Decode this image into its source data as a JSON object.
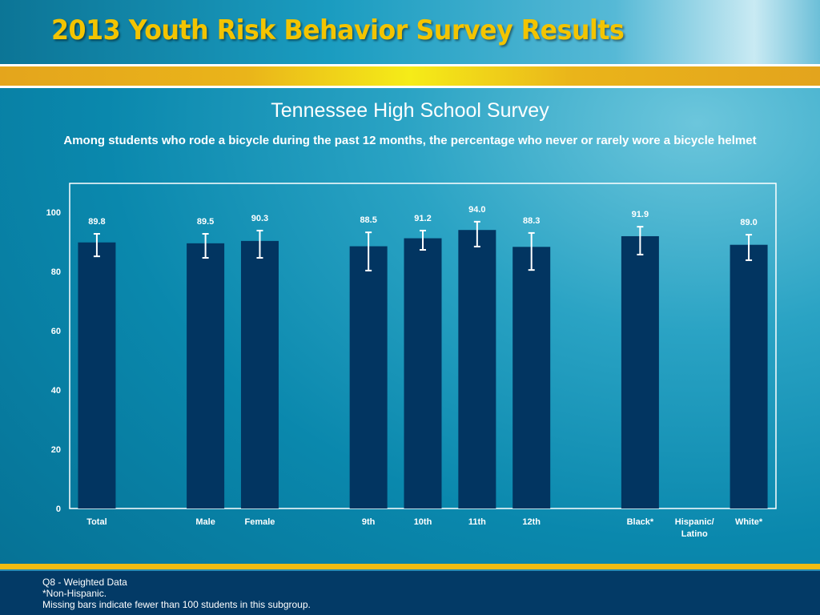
{
  "header": {
    "title": "2013 Youth Risk Behavior Survey Results"
  },
  "colors": {
    "title_gold": "#f3c400",
    "bar": "#023561",
    "error_bar": "#ffffff",
    "footer_bg": "#033a66"
  },
  "chart_data": {
    "type": "bar",
    "title": "Tennessee High School Survey",
    "subtitle": "Among students who rode a bicycle during the past 12 months, the percentage who never or rarely wore a bicycle helmet",
    "xlabel": "",
    "ylabel": "",
    "ylim": [
      0,
      100
    ],
    "yticks": [
      0,
      20,
      40,
      60,
      80,
      100
    ],
    "grid": false,
    "legend": "none",
    "categories": [
      [
        "Total"
      ],
      [
        ""
      ],
      [
        "Male"
      ],
      [
        "Female"
      ],
      [
        ""
      ],
      [
        "9th"
      ],
      [
        "10th"
      ],
      [
        "11th"
      ],
      [
        "12th"
      ],
      [
        ""
      ],
      [
        "Black*"
      ],
      [
        "Hispanic/",
        "Latino"
      ],
      [
        "White*"
      ]
    ],
    "values": [
      89.8,
      null,
      89.5,
      90.3,
      null,
      88.5,
      91.2,
      94.0,
      88.3,
      null,
      91.9,
      null,
      89.0
    ],
    "value_labels": [
      "89.8",
      "",
      "89.5",
      "90.3",
      "",
      "88.5",
      "91.2",
      "94.0",
      "88.3",
      "",
      "91.9",
      "",
      "89.0"
    ],
    "error_low": [
      85.1,
      null,
      84.6,
      84.6,
      null,
      80.3,
      87.3,
      88.4,
      80.5,
      null,
      85.7,
      null,
      83.8
    ],
    "error_high": [
      92.7,
      null,
      92.7,
      93.8,
      null,
      93.2,
      93.8,
      96.8,
      93.0,
      null,
      95.1,
      null,
      92.4
    ]
  },
  "footer": {
    "lines": [
      "Q8 - Weighted Data",
      "*Non-Hispanic.",
      "Missing bars indicate fewer than 100 students in this subgroup."
    ]
  }
}
